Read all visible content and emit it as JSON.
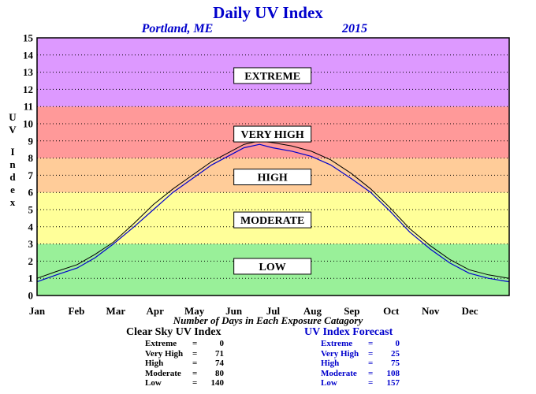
{
  "chart_data": {
    "type": "line",
    "title": "Daily UV Index",
    "subtitle_location": "Portland, ME",
    "subtitle_year": "2015",
    "ylabel": "UV Index",
    "xlabel": "Number of Days in Each Exposure Catagory",
    "ylim": [
      0,
      15
    ],
    "yticks": [
      "0",
      "1",
      "2",
      "3",
      "4",
      "5",
      "6",
      "7",
      "8",
      "9",
      "10",
      "11",
      "12",
      "13",
      "14",
      "15"
    ],
    "months": [
      "Jan",
      "Feb",
      "Mar",
      "Apr",
      "May",
      "Jun",
      "Jul",
      "Aug",
      "Sep",
      "Oct",
      "Nov",
      "Dec"
    ],
    "grid": true,
    "bands": [
      {
        "name": "LOW",
        "from": 0,
        "to": 3,
        "color": "#99f099",
        "label_y": 1.7
      },
      {
        "name": "MODERATE",
        "from": 3,
        "to": 6,
        "color": "#ffff99",
        "label_y": 4.4
      },
      {
        "name": "HIGH",
        "from": 6,
        "to": 8,
        "color": "#ffcc99",
        "label_y": 6.9
      },
      {
        "name": "VERY HIGH",
        "from": 8,
        "to": 11,
        "color": "#ff9999",
        "label_y": 9.4
      },
      {
        "name": "EXTREME",
        "from": 11,
        "to": 15,
        "color": "#dd99ff",
        "label_y": 12.8
      }
    ],
    "series": [
      {
        "name": "Clear Sky UV Index",
        "color": "#000000",
        "points": [
          [
            0,
            1.0
          ],
          [
            15,
            1.4
          ],
          [
            31,
            1.8
          ],
          [
            45,
            2.4
          ],
          [
            59,
            3.1
          ],
          [
            75,
            4.2
          ],
          [
            90,
            5.3
          ],
          [
            105,
            6.2
          ],
          [
            120,
            7.0
          ],
          [
            135,
            7.8
          ],
          [
            150,
            8.4
          ],
          [
            160,
            8.8
          ],
          [
            172,
            9.0
          ],
          [
            182,
            8.9
          ],
          [
            197,
            8.7
          ],
          [
            212,
            8.4
          ],
          [
            227,
            7.9
          ],
          [
            243,
            7.1
          ],
          [
            258,
            6.2
          ],
          [
            273,
            5.1
          ],
          [
            288,
            3.9
          ],
          [
            304,
            2.9
          ],
          [
            319,
            2.1
          ],
          [
            334,
            1.5
          ],
          [
            349,
            1.2
          ],
          [
            365,
            1.0
          ]
        ]
      },
      {
        "name": "UV Index Forecast",
        "color": "#0000cc",
        "points": [
          [
            0,
            0.8
          ],
          [
            15,
            1.2
          ],
          [
            31,
            1.6
          ],
          [
            45,
            2.2
          ],
          [
            59,
            3.0
          ],
          [
            75,
            4.0
          ],
          [
            90,
            5.0
          ],
          [
            105,
            6.0
          ],
          [
            120,
            6.8
          ],
          [
            135,
            7.6
          ],
          [
            150,
            8.2
          ],
          [
            160,
            8.6
          ],
          [
            172,
            8.8
          ],
          [
            182,
            8.6
          ],
          [
            197,
            8.4
          ],
          [
            212,
            8.1
          ],
          [
            227,
            7.6
          ],
          [
            243,
            6.8
          ],
          [
            258,
            6.0
          ],
          [
            273,
            4.9
          ],
          [
            288,
            3.7
          ],
          [
            304,
            2.7
          ],
          [
            319,
            1.9
          ],
          [
            334,
            1.3
          ],
          [
            349,
            1.0
          ],
          [
            365,
            0.8
          ]
        ]
      }
    ],
    "summary": {
      "clear_sky": {
        "title": "Clear Sky UV Index",
        "rows": [
          {
            "label": "Extreme",
            "value": "0"
          },
          {
            "label": "Very High",
            "value": "71"
          },
          {
            "label": "High",
            "value": "74"
          },
          {
            "label": "Moderate",
            "value": "80"
          },
          {
            "label": "Low",
            "value": "140"
          }
        ]
      },
      "forecast": {
        "title": "UV Index Forecast",
        "rows": [
          {
            "label": "Extreme",
            "value": "0"
          },
          {
            "label": "Very High",
            "value": "25"
          },
          {
            "label": "High",
            "value": "75"
          },
          {
            "label": "Moderate",
            "value": "108"
          },
          {
            "label": "Low",
            "value": "157"
          }
        ]
      }
    },
    "colors": {
      "title": "#0000cc",
      "forecast": "#0000cc",
      "clear": "#000000"
    }
  }
}
